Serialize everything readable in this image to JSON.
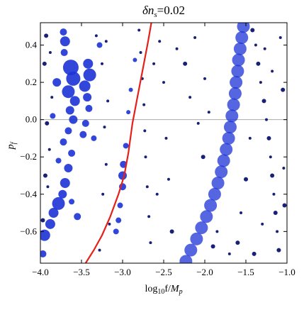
{
  "chart_data": {
    "type": "scatter",
    "title": "δn",
    "title_sub": "s",
    "title_value": "=0.02",
    "xlabel": "log",
    "xlabel_sub": "10",
    "xlabel_rest": "f/",
    "xlabel_italic": "M",
    "xlabel_italic_sub": "p",
    "ylabel": "p",
    "ylabel_sub": "f",
    "xlim": [
      -4.0,
      -1.0
    ],
    "ylim": [
      -0.77,
      0.52
    ],
    "xticks": [
      -4.0,
      -3.5,
      -3.0,
      -2.5,
      -2.0,
      -1.5,
      -1.0
    ],
    "xtick_labels": [
      "−4.0",
      "−3.5",
      "−3.0",
      "−2.5",
      "−2.0",
      "−1.5",
      "−1.0"
    ],
    "yticks": [
      0.4,
      0.2,
      0.0,
      -0.2,
      -0.4,
      -0.6
    ],
    "ytick_labels": [
      "0.4",
      "0.2",
      "0.0",
      "−0.2",
      "−0.4",
      "−0.6"
    ],
    "reference_line_y": 0.0,
    "colors": {
      "large_points": "#1c33d6",
      "small_points": "#0d1570",
      "curve": "#e5201a",
      "reference_line": "#aaaaaa"
    },
    "series": [
      {
        "kind": "large_points",
        "points": [
          [
            -3.72,
            0.47,
            5
          ],
          [
            -3.7,
            0.42,
            7
          ],
          [
            -3.71,
            0.36,
            5
          ],
          [
            -3.63,
            0.28,
            11
          ],
          [
            -3.6,
            0.22,
            10
          ],
          [
            -3.66,
            0.15,
            9
          ],
          [
            -3.58,
            0.1,
            7
          ],
          [
            -3.64,
            0.05,
            6
          ],
          [
            -3.6,
            0.0,
            6
          ],
          [
            -3.66,
            -0.06,
            5
          ],
          [
            -3.72,
            -0.12,
            5
          ],
          [
            -3.62,
            -0.18,
            5
          ],
          [
            -3.66,
            -0.26,
            6
          ],
          [
            -3.7,
            -0.34,
            7
          ],
          [
            -3.73,
            -0.4,
            6
          ],
          [
            -3.78,
            -0.45,
            9
          ],
          [
            -3.84,
            -0.5,
            7
          ],
          [
            -3.88,
            -0.56,
            7
          ],
          [
            -3.95,
            -0.62,
            8
          ],
          [
            -3.97,
            -0.72,
            5
          ],
          [
            -3.42,
            0.3,
            7
          ],
          [
            -3.4,
            0.24,
            9
          ],
          [
            -3.46,
            0.18,
            8
          ],
          [
            -3.43,
            0.12,
            6
          ],
          [
            -3.41,
            0.06,
            5
          ],
          [
            -3.45,
            -0.02,
            5
          ],
          [
            -3.48,
            -0.08,
            5
          ],
          [
            -3.8,
            0.2,
            6
          ],
          [
            -3.85,
            0.02,
            4
          ],
          [
            -3.78,
            -0.22,
            4
          ],
          [
            -3.28,
            0.4,
            4
          ],
          [
            -3.35,
            -0.1,
            4
          ],
          [
            -3.55,
            -0.52,
            5
          ],
          [
            -3.62,
            -0.44,
            4
          ]
        ]
      },
      {
        "kind": "large_points",
        "points": [
          [
            -3.0,
            -0.3,
            6
          ],
          [
            -2.99,
            -0.24,
            5
          ],
          [
            -3.0,
            -0.36,
            5
          ],
          [
            -3.03,
            -0.46,
            4
          ],
          [
            -3.05,
            -0.54,
            4
          ],
          [
            -3.08,
            -0.6,
            4
          ],
          [
            -2.96,
            -0.14,
            4
          ],
          [
            -2.93,
            0.04,
            3
          ],
          [
            -2.9,
            0.16,
            3
          ],
          [
            -2.85,
            0.32,
            3
          ]
        ]
      },
      {
        "kind": "dense_band",
        "points": [
          [
            -1.53,
            0.5,
            9
          ],
          [
            -1.55,
            0.44,
            9
          ],
          [
            -1.57,
            0.38,
            9
          ],
          [
            -1.59,
            0.32,
            9
          ],
          [
            -1.6,
            0.26,
            9
          ],
          [
            -1.62,
            0.2,
            9
          ],
          [
            -1.63,
            0.14,
            9
          ],
          [
            -1.65,
            0.08,
            9
          ],
          [
            -1.67,
            0.02,
            9
          ],
          [
            -1.69,
            -0.04,
            9
          ],
          [
            -1.71,
            -0.1,
            9
          ],
          [
            -1.74,
            -0.16,
            9
          ],
          [
            -1.77,
            -0.22,
            9
          ],
          [
            -1.8,
            -0.28,
            9
          ],
          [
            -1.84,
            -0.34,
            9
          ],
          [
            -1.88,
            -0.4,
            9
          ],
          [
            -1.93,
            -0.46,
            9
          ],
          [
            -1.98,
            -0.52,
            9
          ],
          [
            -2.04,
            -0.58,
            9
          ],
          [
            -2.1,
            -0.64,
            9
          ],
          [
            -2.17,
            -0.7,
            9
          ],
          [
            -2.23,
            -0.76,
            9
          ]
        ]
      },
      {
        "kind": "small_points",
        "points": [
          [
            -3.93,
            0.45,
            3
          ],
          [
            -3.88,
            0.36,
            2
          ],
          [
            -3.95,
            0.3,
            3
          ],
          [
            -3.86,
            0.12,
            2
          ],
          [
            -3.92,
            -0.02,
            3
          ],
          [
            -3.89,
            -0.16,
            2
          ],
          [
            -3.94,
            -0.3,
            3
          ],
          [
            -3.91,
            -0.36,
            2
          ],
          [
            -3.97,
            -0.54,
            3
          ],
          [
            -3.32,
            0.45,
            2
          ],
          [
            -3.2,
            0.42,
            2
          ],
          [
            -3.25,
            0.3,
            2
          ],
          [
            -3.18,
            0.1,
            2
          ],
          [
            -3.22,
            -0.04,
            2
          ],
          [
            -3.2,
            -0.24,
            2
          ],
          [
            -3.24,
            -0.4,
            2
          ],
          [
            -3.16,
            -0.56,
            2
          ],
          [
            -3.28,
            -0.7,
            2
          ],
          [
            -2.8,
            0.48,
            2
          ],
          [
            -2.78,
            0.36,
            2
          ],
          [
            -2.76,
            0.22,
            2
          ],
          [
            -2.74,
            0.08,
            2
          ],
          [
            -2.73,
            -0.06,
            2
          ],
          [
            -2.72,
            -0.2,
            2
          ],
          [
            -2.7,
            -0.36,
            2
          ],
          [
            -2.68,
            -0.52,
            2
          ],
          [
            -2.66,
            -0.66,
            2
          ],
          [
            -2.55,
            0.42,
            2
          ],
          [
            -2.5,
            0.2,
            2
          ],
          [
            -2.47,
            -0.1,
            2
          ],
          [
            -2.44,
            -0.32,
            2
          ],
          [
            -2.4,
            -0.6,
            3
          ],
          [
            -2.62,
            0.3,
            2
          ],
          [
            -2.58,
            -0.4,
            2
          ],
          [
            -2.34,
            0.38,
            2
          ],
          [
            -2.24,
            0.3,
            3
          ],
          [
            -2.12,
            0.44,
            2
          ],
          [
            -2.18,
            0.12,
            2
          ],
          [
            -2.08,
            -0.02,
            2
          ],
          [
            -2.02,
            -0.2,
            3
          ],
          [
            -2.0,
            0.22,
            2
          ],
          [
            -1.95,
            0.04,
            2
          ],
          [
            -1.42,
            0.48,
            3
          ],
          [
            -1.38,
            0.4,
            2
          ],
          [
            -1.35,
            0.3,
            3
          ],
          [
            -1.32,
            0.2,
            2
          ],
          [
            -1.28,
            0.1,
            3
          ],
          [
            -1.25,
            0.0,
            2
          ],
          [
            -1.22,
            -0.1,
            3
          ],
          [
            -1.2,
            -0.2,
            2
          ],
          [
            -1.18,
            -0.3,
            3
          ],
          [
            -1.16,
            -0.4,
            2
          ],
          [
            -1.14,
            -0.5,
            3
          ],
          [
            -1.12,
            -0.6,
            2
          ],
          [
            -1.1,
            -0.7,
            3
          ],
          [
            -1.45,
            -0.1,
            2
          ],
          [
            -1.5,
            -0.32,
            3
          ],
          [
            -1.56,
            -0.5,
            2
          ],
          [
            -1.6,
            -0.66,
            3
          ],
          [
            -1.3,
            -0.56,
            2
          ],
          [
            -1.08,
            0.44,
            2
          ],
          [
            -1.05,
            0.16,
            3
          ],
          [
            -1.04,
            -0.26,
            2
          ],
          [
            -1.03,
            -0.46,
            3
          ],
          [
            -1.27,
            0.38,
            2
          ],
          [
            -1.18,
            0.26,
            2
          ],
          [
            -1.4,
            -0.72,
            3
          ],
          [
            -1.7,
            -0.72,
            2
          ],
          [
            -1.85,
            -0.6,
            2
          ],
          [
            -1.9,
            -0.68,
            3
          ]
        ]
      },
      {
        "kind": "curve",
        "x": [
          -3.45,
          -3.35,
          -3.25,
          -3.15,
          -3.05,
          -2.98,
          -2.93,
          -2.88,
          -2.82,
          -2.75,
          -2.69,
          -2.65
        ],
        "y": [
          -0.77,
          -0.7,
          -0.62,
          -0.52,
          -0.4,
          -0.3,
          -0.18,
          -0.02,
          0.12,
          0.28,
          0.42,
          0.52
        ]
      }
    ]
  }
}
